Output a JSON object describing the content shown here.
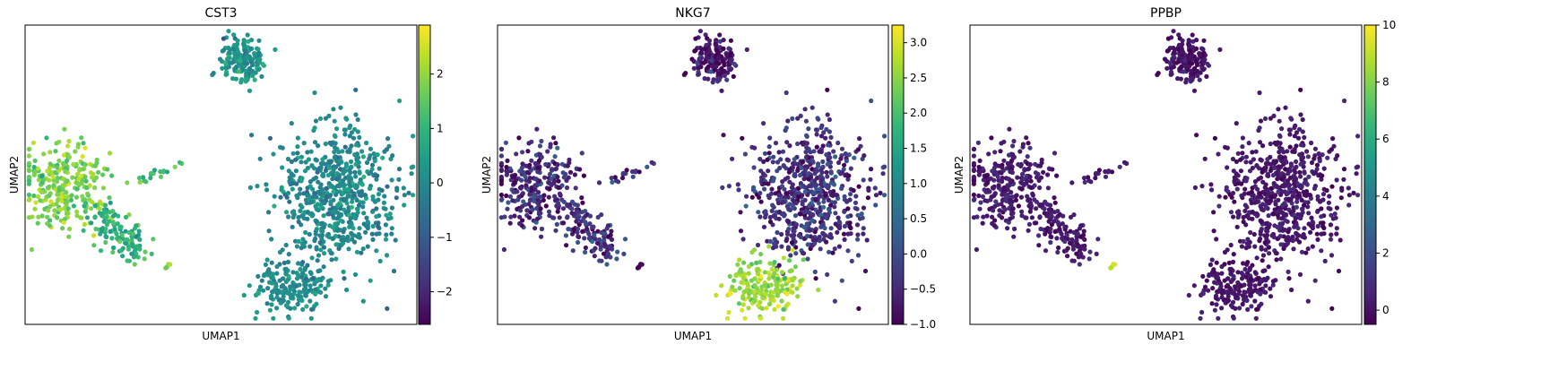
{
  "colormap": {
    "name": "viridis",
    "stops": [
      "#440154",
      "#482878",
      "#3e4989",
      "#31688e",
      "#26828e",
      "#1f9e89",
      "#35b779",
      "#6ece58",
      "#b5de2b",
      "#fde725"
    ]
  },
  "chart_data": [
    {
      "type": "scatter",
      "title": "CST3",
      "xlabel": "UMAP1",
      "ylabel": "UMAP2",
      "grid": false,
      "colorbar": {
        "min": -2.6,
        "max": 2.9,
        "ticks": [
          2,
          1,
          0,
          -1,
          -2
        ],
        "tick_labels": [
          "2",
          "1",
          "0",
          "−1",
          "−2"
        ]
      },
      "point_color_by_cluster": {
        "upper": 0.3,
        "left": 1.8,
        "left_lower": 0.9,
        "tip": 2.3,
        "streak": 1.3,
        "right": 0.0,
        "bottom_right": 0.1
      }
    },
    {
      "type": "scatter",
      "title": "NKG7",
      "xlabel": "UMAP1",
      "ylabel": "UMAP2",
      "grid": false,
      "colorbar": {
        "min": -1.0,
        "max": 3.25,
        "ticks": [
          3.0,
          2.5,
          2.0,
          1.5,
          1.0,
          0.5,
          0.0,
          -0.5,
          -1.0
        ],
        "tick_labels": [
          "3.0",
          "2.5",
          "2.0",
          "1.5",
          "1.0",
          "0.5",
          "0.0",
          "−0.5",
          "−1.0"
        ]
      },
      "point_color_by_cluster": {
        "upper": -0.7,
        "left": -0.5,
        "left_lower": -0.4,
        "tip": -0.8,
        "streak": -0.3,
        "right": -0.4,
        "bottom_right": 2.6
      }
    },
    {
      "type": "scatter",
      "title": "PPBP",
      "xlabel": "UMAP1",
      "ylabel": "UMAP2",
      "grid": false,
      "colorbar": {
        "min": -0.5,
        "max": 10.0,
        "ticks": [
          10,
          8,
          6,
          4,
          2,
          0
        ],
        "tick_labels": [
          "10",
          "8",
          "6",
          "4",
          "2",
          "0"
        ]
      },
      "point_color_by_cluster": {
        "upper": 0.1,
        "left": 0.3,
        "left_lower": 0.2,
        "tip": 9.5,
        "streak": 0.4,
        "right": 0.2,
        "bottom_right": 0.1
      }
    }
  ]
}
